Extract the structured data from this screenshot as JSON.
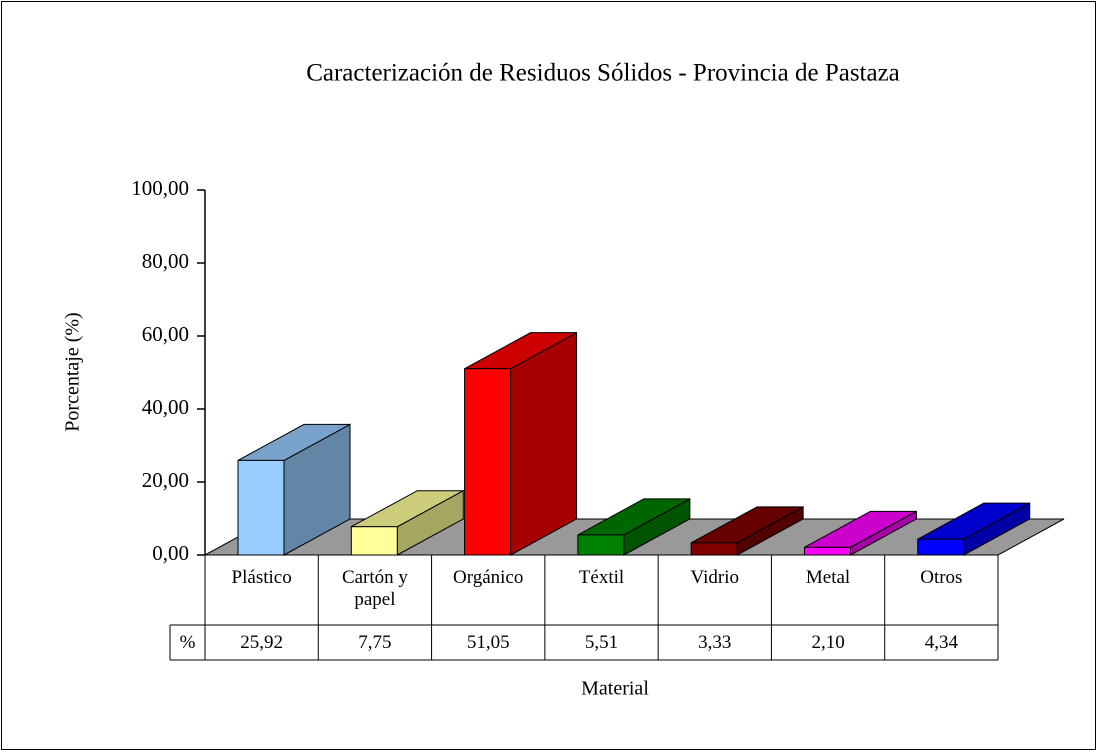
{
  "chart_data": {
    "type": "bar3d",
    "title": "Caracterización de Residuos Sólidos - Provincia de Pastaza",
    "xlabel": "Material",
    "ylabel": "Porcentaje (%)",
    "categories": [
      "Plástico",
      "Cartón y papel",
      "Orgánico",
      "Téxtil",
      "Vidrio",
      "Metal",
      "Otros"
    ],
    "series": [
      {
        "name": "%",
        "values": [
          25.92,
          7.75,
          51.05,
          5.51,
          3.33,
          2.1,
          4.34
        ],
        "value_labels": [
          "25,92",
          "7,75",
          "51,05",
          "5,51",
          "3,33",
          "2,10",
          "4,34"
        ],
        "colors": [
          "#99ccff",
          "#ffff99",
          "#ff0000",
          "#008000",
          "#800000",
          "#ff00ff",
          "#0000ff"
        ]
      }
    ],
    "ylim": [
      0,
      100
    ],
    "yticks": [
      {
        "value": 0,
        "label": "0,00"
      },
      {
        "value": 20,
        "label": "20,00"
      },
      {
        "value": 40,
        "label": "40,00"
      },
      {
        "value": 60,
        "label": "60,00"
      },
      {
        "value": 80,
        "label": "80,00"
      },
      {
        "value": 100,
        "label": "100,00"
      }
    ],
    "data_table": true
  }
}
